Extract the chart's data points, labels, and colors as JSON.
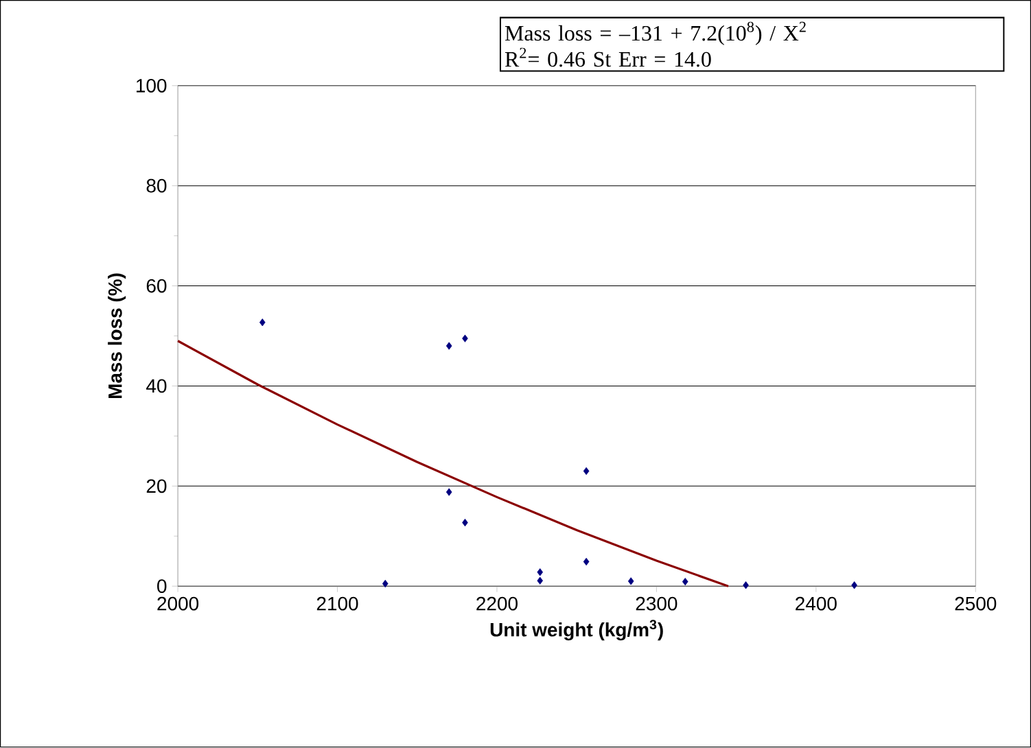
{
  "chart_data": {
    "type": "scatter",
    "xlabel": "Unit weight (kg/m$^{3}$)",
    "ylabel": "Mass loss (%)",
    "annotations": [
      "Mass loss = –131 + 7.2(10$^{8}$) / X$^{2}$",
      "R$^{2}$= 0.46   St Err = 14.0"
    ],
    "xlim": [
      2000,
      2500
    ],
    "xticks": [
      2000,
      2100,
      2200,
      2300,
      2400,
      2500
    ],
    "ylim": [
      0,
      100
    ],
    "yticks": [
      0,
      20,
      40,
      60,
      80,
      100
    ],
    "grid": "y",
    "marker": "diamond",
    "series": [
      {
        "color": "#000080",
        "x": [
          2053,
          2130,
          2170,
          2180,
          2170,
          2180,
          2227,
          2227,
          2256,
          2256,
          2284,
          2318,
          2356,
          2424
        ],
        "values": [
          52.7,
          0.5,
          48,
          49.5,
          18.8,
          12.7,
          2.8,
          1.1,
          23,
          4.9,
          1.0,
          0.9,
          0.2,
          0.2
        ]
      },
      {
        "type": "line",
        "color": "#8b0000",
        "marker": "none",
        "line_style": "solid",
        "x": [
          2000,
          2050,
          2100,
          2150,
          2200,
          2250,
          2300,
          2345
        ],
        "values": [
          49,
          40.3,
          32.3,
          24.8,
          17.8,
          11.2,
          5.1,
          0
        ]
      }
    ]
  }
}
